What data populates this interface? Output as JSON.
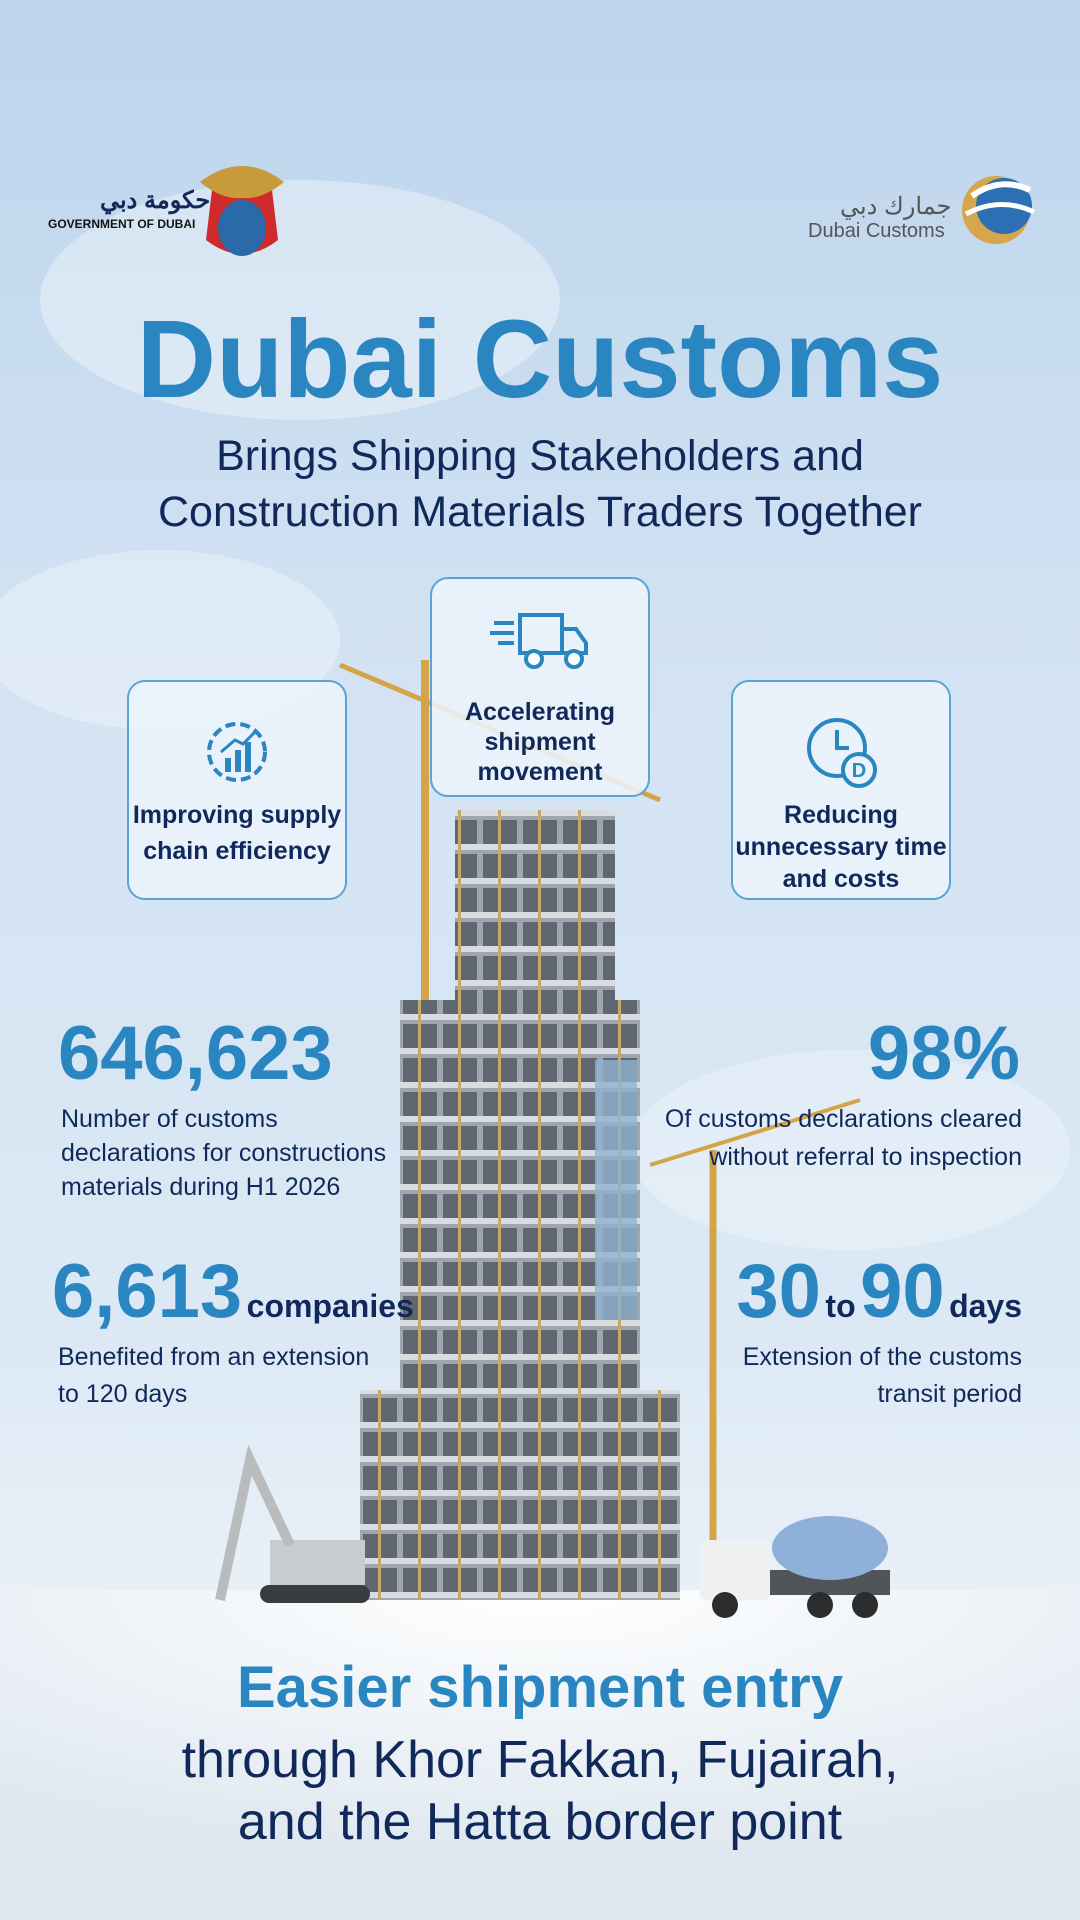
{
  "header": {
    "government_logo": {
      "arabic": "حكومة دبي",
      "english": "GOVERNMENT OF DUBAI"
    },
    "customs_logo": {
      "arabic": "جمارك دبي",
      "english": "Dubai Customs"
    }
  },
  "title": "Dubai Customs",
  "subtitle": [
    "Brings Shipping Stakeholders and",
    "Construction Materials Traders Together"
  ],
  "features": [
    {
      "label": [
        "Improving supply",
        "chain efficiency"
      ]
    },
    {
      "label": [
        "Accelerating",
        "shipment",
        "movement"
      ]
    },
    {
      "label": [
        "Reducing",
        "unnecessary time",
        "and costs"
      ]
    }
  ],
  "stats": [
    {
      "value": "646,623",
      "description": [
        "Number of customs",
        "declarations for constructions",
        "materials during H1 2026"
      ]
    },
    {
      "value": "98%",
      "description": [
        "Of customs declarations cleared",
        "without referral to inspection"
      ]
    },
    {
      "value": "6,613",
      "unit": "companies",
      "description": [
        "Benefited from an extension",
        "to 120 days"
      ]
    },
    {
      "from": "30",
      "connector": "to",
      "to": "90",
      "unit": "days",
      "description": [
        "Extension of the customs",
        "transit period"
      ]
    }
  ],
  "footer": {
    "headline": "Easier shipment entry",
    "lines": [
      "through Khor Fakkan, Fujairah,",
      "and the Hatta border point"
    ]
  }
}
